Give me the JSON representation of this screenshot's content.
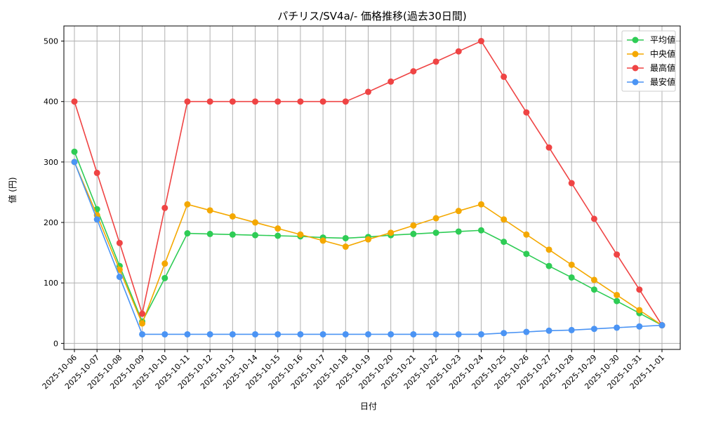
{
  "chart_data": {
    "type": "line",
    "title": "パチリス/SV4a/- 価格推移(過去30日間)",
    "xlabel": "日付",
    "ylabel": "値 (円)",
    "x": [
      "2025-10-06",
      "2025-10-07",
      "2025-10-08",
      "2025-10-09",
      "2025-10-10",
      "2025-10-11",
      "2025-10-12",
      "2025-10-13",
      "2025-10-14",
      "2025-10-15",
      "2025-10-16",
      "2025-10-17",
      "2025-10-18",
      "2025-10-19",
      "2025-10-20",
      "2025-10-21",
      "2025-10-22",
      "2025-10-23",
      "2025-10-24",
      "2025-10-25",
      "2025-10-26",
      "2025-10-27",
      "2025-10-28",
      "2025-10-29",
      "2025-10-30",
      "2025-10-31",
      "2025-11-01"
    ],
    "ylim": [
      -10,
      525
    ],
    "yticks": [
      0,
      100,
      200,
      300,
      400,
      500
    ],
    "grid": true,
    "legend": "top-right",
    "series": [
      {
        "name": "平均値",
        "color": "#2ecc55",
        "values": [
          317,
          222,
          128,
          36,
          108,
          182,
          181,
          180,
          179,
          178,
          177,
          175,
          174,
          176,
          179,
          181,
          183,
          185,
          187,
          168,
          148,
          128,
          109,
          89,
          70,
          50,
          30
        ]
      },
      {
        "name": "中央値",
        "color": "#f4a800",
        "values": [
          300,
          212,
          122,
          33,
          132,
          230,
          220,
          210,
          200,
          190,
          180,
          170,
          160,
          172,
          183,
          195,
          207,
          219,
          230,
          205,
          180,
          155,
          130,
          105,
          80,
          55,
          30
        ]
      },
      {
        "name": "最高値",
        "color": "#ef4444",
        "values": [
          400,
          282,
          166,
          49,
          224,
          400,
          400,
          400,
          400,
          400,
          400,
          400,
          400,
          416,
          433,
          450,
          466,
          483,
          500,
          441,
          382,
          324,
          265,
          206,
          147,
          89,
          30
        ]
      },
      {
        "name": "最安値",
        "color": "#4b94f4",
        "values": [
          300,
          205,
          110,
          15,
          15,
          15,
          15,
          15,
          15,
          15,
          15,
          15,
          15,
          15,
          15,
          15,
          15,
          15,
          15,
          17,
          19,
          21,
          22,
          24,
          26,
          28,
          30
        ]
      }
    ]
  }
}
